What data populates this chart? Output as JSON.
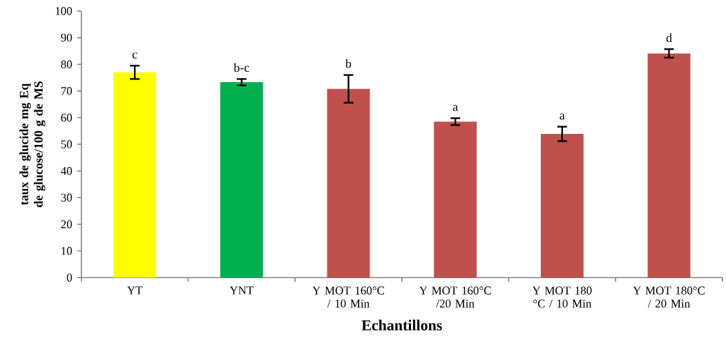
{
  "chart_data": {
    "type": "bar",
    "xlabel": "Echantillons",
    "ylabel": "taux de glucide  mg Eq de glucose/100 g de MS",
    "categories": [
      "YT",
      "YNT",
      "Y MOT 160°C / 10 Min",
      "Y MOT 160°C /20 Min",
      "Y MOT 180 °C / 10 Min",
      "Y MOT 180°C / 20 Min"
    ],
    "values": [
      77,
      73.3,
      70.8,
      58.5,
      53.9,
      84.1
    ],
    "errors": [
      2.5,
      1.2,
      5.2,
      1.3,
      2.7,
      1.6
    ],
    "colors": [
      "#ffff00",
      "#00b050",
      "#c0504d",
      "#c0504d",
      "#c0504d",
      "#c0504d"
    ],
    "ylim": [
      0,
      100
    ],
    "yticks": [
      0,
      10,
      20,
      30,
      40,
      50,
      60,
      70,
      80,
      90,
      100
    ],
    "annotations": [
      "c",
      "b-c",
      "b",
      "a",
      "a",
      "d"
    ]
  }
}
